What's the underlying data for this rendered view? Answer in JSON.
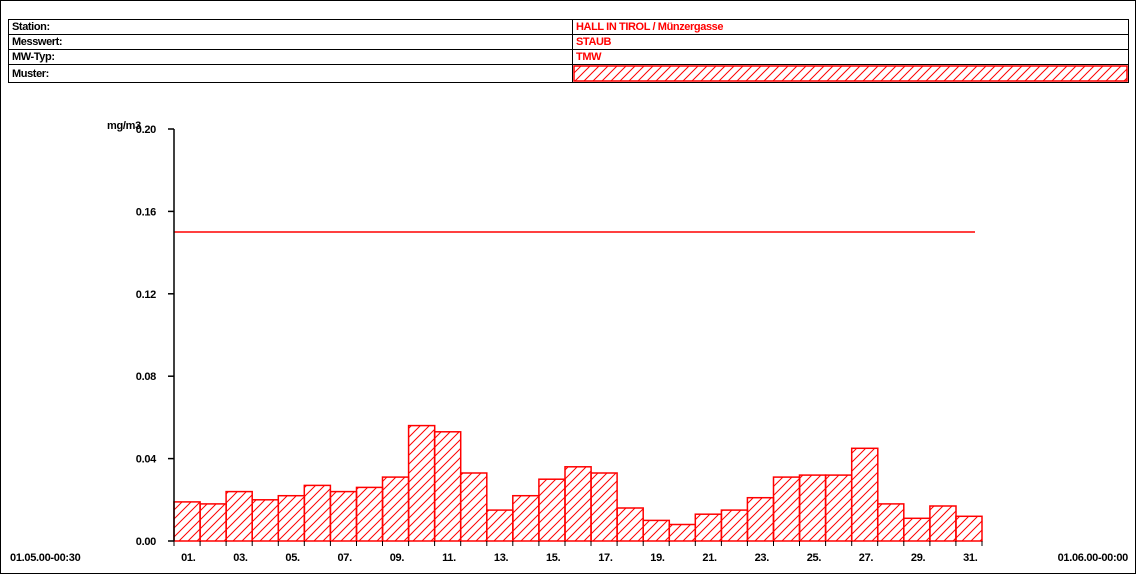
{
  "info": {
    "station_label": "Station:",
    "station_value": "HALL IN TIROL / Münzergasse",
    "messwert_label": "Messwert:",
    "messwert_value": "STAUB",
    "mwtyp_label": "MW-Typ:",
    "mwtyp_value": "TMW",
    "muster_label": "Muster:"
  },
  "colors": {
    "series": "#ff0000",
    "axis": "#000000"
  },
  "chart_data": {
    "type": "bar",
    "ylabel": "mg/m3",
    "ylim": [
      0,
      0.2
    ],
    "yticks": [
      "0.00",
      "0.04",
      "0.08",
      "0.12",
      "0.16",
      "0.20"
    ],
    "x_start_label": "01.05.00-00:30",
    "x_end_label": "01.06.00-00:00",
    "xtick_labels": [
      "01.",
      "03.",
      "05.",
      "07.",
      "09.",
      "11.",
      "13.",
      "15.",
      "17.",
      "19.",
      "21.",
      "23.",
      "25.",
      "27.",
      "29.",
      "31."
    ],
    "categories": [
      "01",
      "02",
      "03",
      "04",
      "05",
      "06",
      "07",
      "08",
      "09",
      "10",
      "11",
      "12",
      "13",
      "14",
      "15",
      "16",
      "17",
      "18",
      "19",
      "20",
      "21",
      "22",
      "23",
      "24",
      "25",
      "26",
      "27",
      "28",
      "29",
      "30",
      "31"
    ],
    "values": [
      0.019,
      0.018,
      0.024,
      0.02,
      0.022,
      0.027,
      0.024,
      0.026,
      0.031,
      0.056,
      0.053,
      0.033,
      0.015,
      0.022,
      0.03,
      0.036,
      0.033,
      0.016,
      0.01,
      0.008,
      0.013,
      0.015,
      0.021,
      0.031,
      0.032,
      0.032,
      0.045,
      0.018,
      0.011,
      0.017,
      0.012
    ],
    "threshold": 0.15,
    "grid": false
  }
}
